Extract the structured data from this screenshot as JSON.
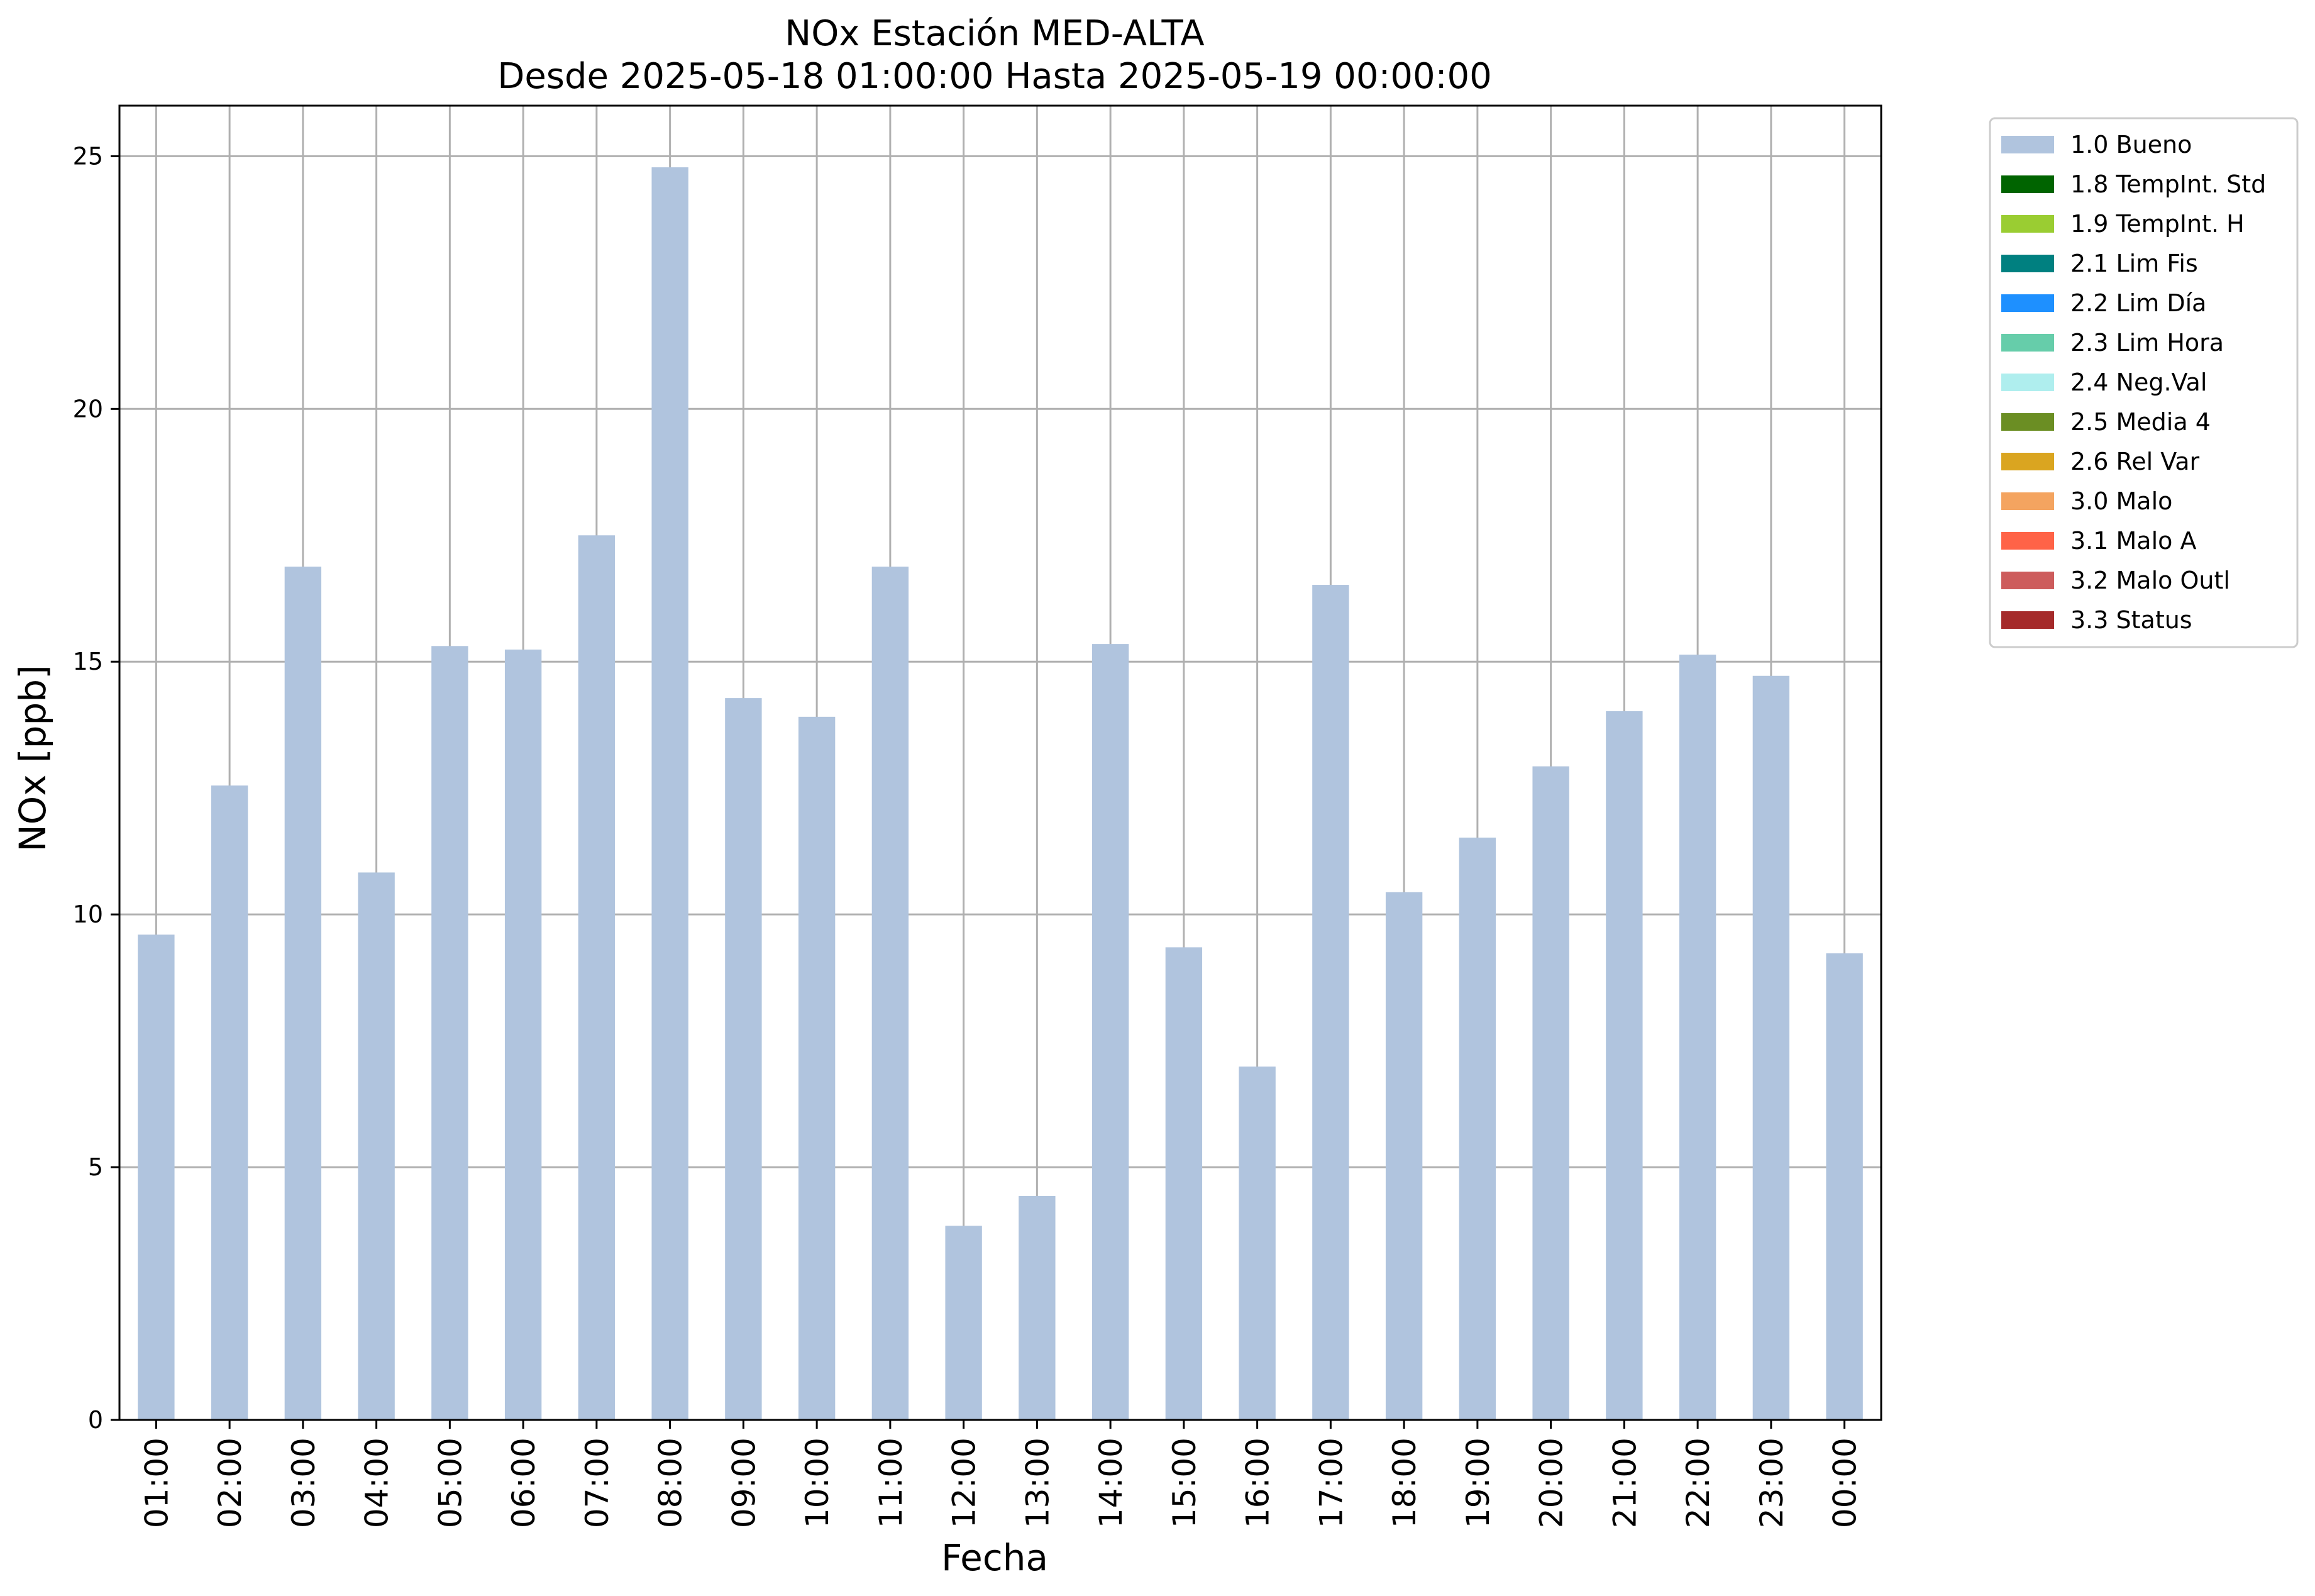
{
  "chart_data": {
    "type": "bar",
    "title": "NOx Estación MED-ALTA",
    "subtitle": "Desde 2025-05-18 01:00:00 Hasta 2025-05-19 00:00:00",
    "xlabel": "Fecha",
    "ylabel": "NOx [ppb]",
    "ylim": [
      0,
      26
    ],
    "yticks": [
      "0",
      "5",
      "10",
      "15",
      "20",
      "25"
    ],
    "grid": true,
    "legend_position": "outside right, top",
    "categories": [
      "01:00",
      "02:00",
      "03:00",
      "04:00",
      "05:00",
      "06:00",
      "07:00",
      "08:00",
      "09:00",
      "10:00",
      "11:00",
      "12:00",
      "13:00",
      "14:00",
      "15:00",
      "16:00",
      "17:00",
      "18:00",
      "19:00",
      "20:00",
      "21:00",
      "22:00",
      "23:00",
      "00:00"
    ],
    "series": [
      {
        "name": "1.0 Bueno",
        "color": "#b0c4de",
        "values": [
          9.6,
          12.55,
          16.88,
          10.83,
          15.31,
          15.24,
          17.5,
          24.78,
          14.28,
          13.91,
          16.88,
          3.84,
          4.43,
          15.35,
          9.35,
          6.99,
          16.52,
          10.44,
          11.52,
          12.93,
          14.02,
          15.14,
          14.72,
          9.23
        ]
      }
    ],
    "legend": [
      {
        "label": "1.0 Bueno",
        "color": "#b0c4de"
      },
      {
        "label": "1.8 TempInt. Std",
        "color": "#006400"
      },
      {
        "label": "1.9 TempInt. H",
        "color": "#9acd32"
      },
      {
        "label": "2.1 Lim Fis",
        "color": "#008080"
      },
      {
        "label": "2.2 Lim Día",
        "color": "#1e90ff"
      },
      {
        "label": "2.3 Lim Hora",
        "color": "#66cdaa"
      },
      {
        "label": "2.4 Neg.Val",
        "color": "#afeeee"
      },
      {
        "label": "2.5 Media 4",
        "color": "#6b8e23"
      },
      {
        "label": "2.6 Rel Var",
        "color": "#daa520"
      },
      {
        "label": "3.0 Malo",
        "color": "#f4a460"
      },
      {
        "label": "3.1 Malo A",
        "color": "#ff6347"
      },
      {
        "label": "3.2 Malo Outl",
        "color": "#cd5c5c"
      },
      {
        "label": "3.3 Status",
        "color": "#a52a2a"
      }
    ],
    "grid_color": "#b0b0b0"
  }
}
